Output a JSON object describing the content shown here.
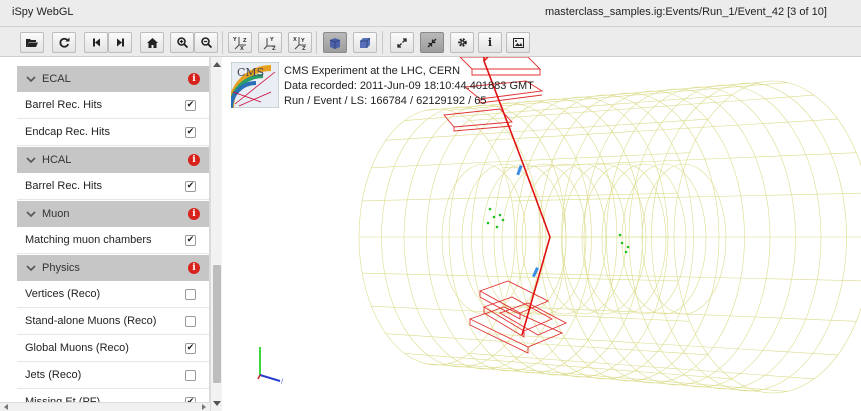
{
  "window": {
    "app_title": "iSpy WebGL",
    "event_path": "masterclass_samples.ig:Events/Run_1/Event_42 [3 of 10]"
  },
  "toolbar": {
    "buttons": [
      {
        "name": "open-file",
        "icon": "folder-open-icon"
      },
      {
        "name": "reload",
        "icon": "refresh-icon"
      },
      {
        "name": "first-event",
        "icon": "step-backward-icon"
      },
      {
        "name": "next-event",
        "icon": "step-forward-icon"
      },
      {
        "name": "reset-view",
        "icon": "home-icon"
      },
      {
        "name": "zoom-in",
        "icon": "zoom-in-icon"
      },
      {
        "name": "zoom-out",
        "icon": "zoom-out-icon"
      },
      {
        "name": "view-3d",
        "icon": "axes-xyz-icon"
      },
      {
        "name": "view-rz",
        "icon": "axes-yz-icon"
      },
      {
        "name": "view-rphi",
        "icon": "axes-xy-icon"
      },
      {
        "name": "perspective",
        "icon": "perspective-cube-icon",
        "active": true
      },
      {
        "name": "orthographic",
        "icon": "ortho-cube-icon"
      },
      {
        "name": "fullscreen-enter",
        "icon": "expand-icon"
      },
      {
        "name": "fullscreen-exit",
        "icon": "compress-icon",
        "active": true
      },
      {
        "name": "settings",
        "icon": "gear-icon"
      },
      {
        "name": "info",
        "icon": "info-icon"
      },
      {
        "name": "screenshot",
        "icon": "picture-icon"
      }
    ]
  },
  "sidebar": {
    "sections": [
      {
        "title": "ECAL",
        "items": [
          {
            "label": "Barrel Rec. Hits",
            "checked": true
          },
          {
            "label": "Endcap Rec. Hits",
            "checked": true
          }
        ]
      },
      {
        "title": "HCAL",
        "items": [
          {
            "label": "Barrel Rec. Hits",
            "checked": true
          }
        ]
      },
      {
        "title": "Muon",
        "items": [
          {
            "label": "Matching muon chambers",
            "checked": true
          }
        ]
      },
      {
        "title": "Physics",
        "items": [
          {
            "label": "Vertices (Reco)",
            "checked": false
          },
          {
            "label": "Stand-alone Muons (Reco)",
            "checked": false
          },
          {
            "label": "Global Muons (Reco)",
            "checked": true
          },
          {
            "label": "Jets (Reco)",
            "checked": false
          },
          {
            "label": "Missing Et (PF)",
            "checked": true
          }
        ]
      }
    ],
    "check_mark": "✔"
  },
  "event_info": {
    "experiment": "CMS Experiment at the LHC, CERN",
    "date": "Data recorded: 2011-Jun-09 18:10:44.401883 GMT",
    "run_event": "Run / Event / LS: 166784 / 62129192 / 65",
    "logo_text": "CMS"
  },
  "colors": {
    "accent": "#d8231d",
    "section_bg": "#c6c6c6",
    "detector_wire": "#d8d880",
    "track": "#e01010",
    "muon_chamber": "#e03030",
    "hits_green": "#22c022",
    "hits_blue": "#3b8ee6"
  }
}
